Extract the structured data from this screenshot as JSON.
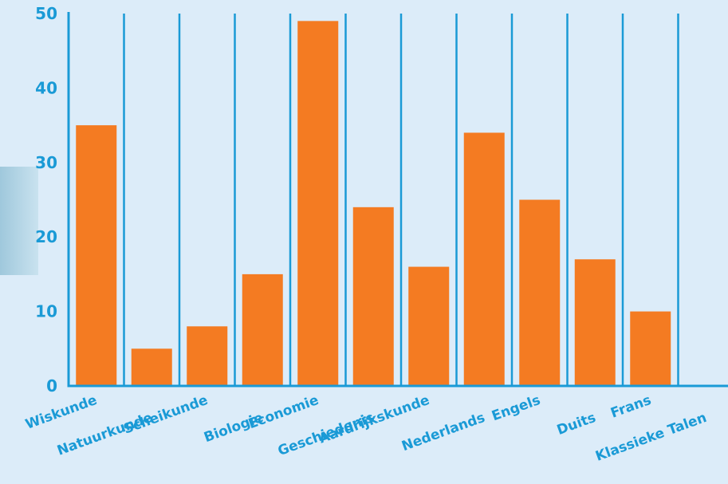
{
  "chart_data": {
    "type": "bar",
    "categories": [
      "Wiskunde",
      "Natuurkunde",
      "Scheikunde",
      "Biologie",
      "Economie",
      "Geschiedenis",
      "Aardrijkskunde",
      "Nederlands",
      "Engels",
      "Duits",
      "Frans",
      "Klassieke Talen"
    ],
    "values": [
      35,
      5,
      8,
      15,
      49,
      24,
      16,
      34,
      25,
      17,
      10,
      0
    ],
    "yticks": [
      0,
      10,
      20,
      30,
      40,
      50
    ],
    "ylim": [
      0,
      50
    ],
    "grid": "vertical",
    "title": "",
    "xlabel": "",
    "ylabel": ""
  },
  "colors": {
    "background": "#dcecf9",
    "bar": "#f47b22",
    "axis": "#1a9ad6",
    "text": "#1a9ad6"
  }
}
